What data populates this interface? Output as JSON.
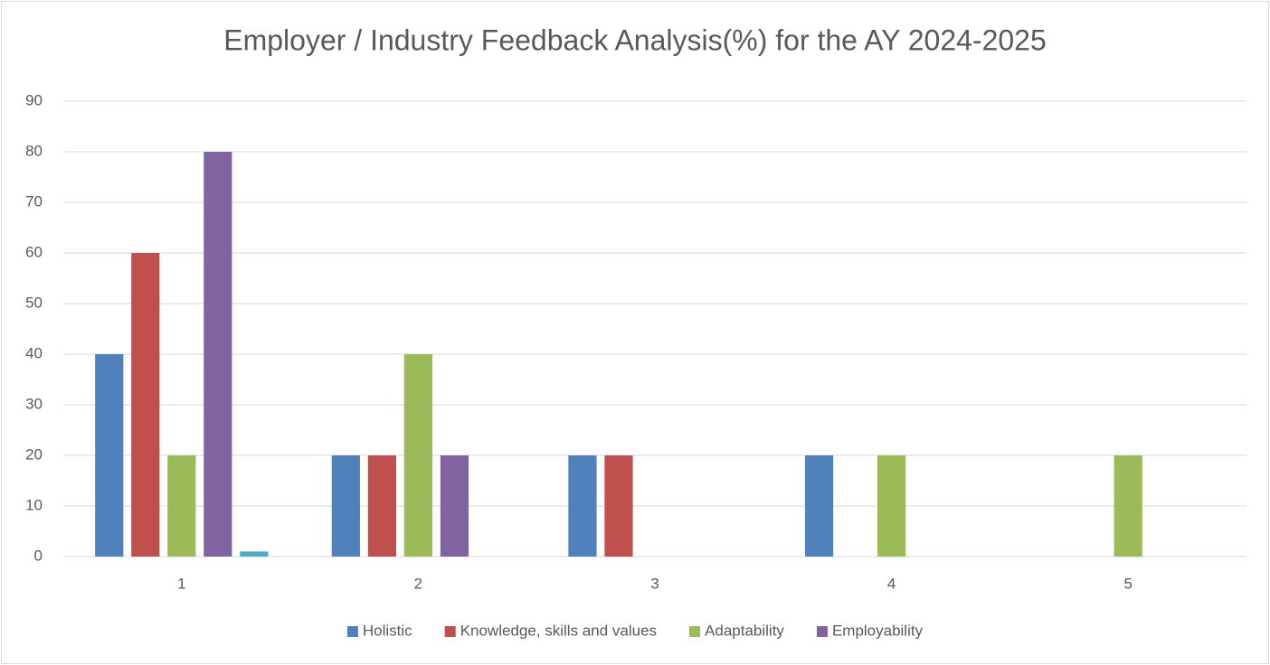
{
  "chart_data": {
    "type": "bar",
    "title": "Employer / Industry Feedback Analysis(%) for the AY 2024-2025",
    "categories": [
      "1",
      "2",
      "3",
      "4",
      "5"
    ],
    "series": [
      {
        "name": "Holistic",
        "color": "#4f81bd",
        "values": [
          40,
          20,
          20,
          20,
          0
        ]
      },
      {
        "name": "Knowledge, skills and values",
        "color": "#c0504d",
        "values": [
          60,
          20,
          20,
          0,
          0
        ]
      },
      {
        "name": "Adaptability",
        "color": "#9bbb59",
        "values": [
          20,
          40,
          0,
          20,
          20
        ]
      },
      {
        "name": "Employability",
        "color": "#8064a2",
        "values": [
          80,
          20,
          0,
          0,
          0
        ]
      },
      {
        "name": null,
        "color": "#4bacc6",
        "values": [
          1,
          0,
          0,
          0,
          0
        ]
      }
    ],
    "ylim": [
      0,
      90
    ],
    "yticks": [
      0,
      10,
      20,
      30,
      40,
      50,
      60,
      70,
      80,
      90
    ],
    "grid": true,
    "legend": "bottom"
  }
}
